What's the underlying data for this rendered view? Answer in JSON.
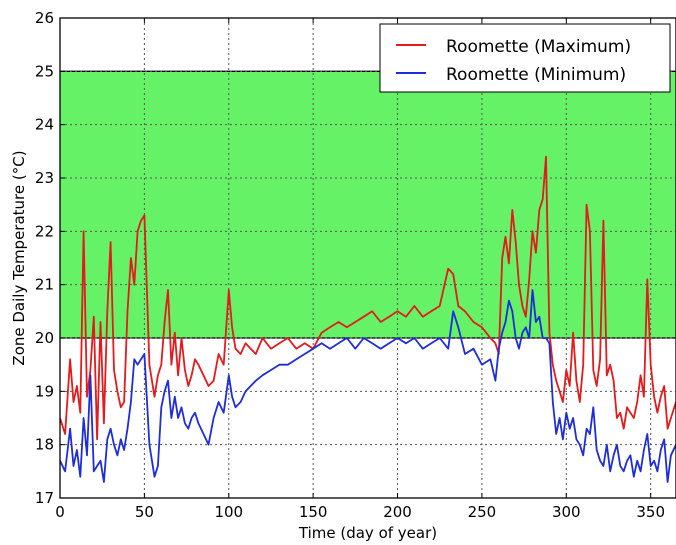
{
  "chart_data": {
    "type": "line",
    "title": "",
    "xlabel": "Time (day of year)",
    "ylabel": "Zone Daily Temperature (°C)",
    "xlim": [
      0,
      365
    ],
    "ylim": [
      17,
      26
    ],
    "xticks": [
      "0",
      "50",
      "100",
      "150",
      "200",
      "250",
      "300",
      "350"
    ],
    "yticks": [
      "17",
      "18",
      "19",
      "20",
      "21",
      "22",
      "23",
      "24",
      "25",
      "26"
    ],
    "grid": true,
    "legend_position": "top-right",
    "band": {
      "y0": 20,
      "y1": 25,
      "color": "#66f266"
    },
    "series": [
      {
        "name": "Roomette (Maximum)",
        "color": "#e41a1c",
        "x": [
          0,
          3,
          6,
          8,
          10,
          12,
          14,
          16,
          18,
          20,
          22,
          24,
          26,
          28,
          30,
          32,
          34,
          36,
          38,
          40,
          42,
          44,
          46,
          48,
          50,
          53,
          56,
          58,
          60,
          62,
          64,
          66,
          68,
          70,
          72,
          74,
          76,
          78,
          80,
          82,
          85,
          88,
          91,
          94,
          97,
          100,
          102,
          104,
          107,
          110,
          113,
          116,
          120,
          125,
          130,
          135,
          140,
          145,
          150,
          155,
          160,
          165,
          170,
          175,
          180,
          185,
          190,
          195,
          200,
          205,
          210,
          215,
          220,
          225,
          230,
          233,
          236,
          240,
          245,
          250,
          255,
          258,
          260,
          262,
          264,
          266,
          268,
          270,
          272,
          274,
          276,
          278,
          280,
          282,
          284,
          286,
          288,
          290,
          292,
          294,
          296,
          298,
          300,
          302,
          304,
          306,
          308,
          310,
          312,
          314,
          316,
          318,
          320,
          322,
          324,
          326,
          328,
          330,
          332,
          334,
          336,
          338,
          340,
          342,
          344,
          346,
          348,
          350,
          352,
          354,
          356,
          358,
          360,
          362,
          365
        ],
        "y": [
          18.5,
          18.2,
          19.6,
          18.8,
          19.1,
          18.6,
          22.0,
          18.9,
          19.4,
          20.4,
          18.1,
          20.3,
          18.4,
          20.5,
          21.8,
          19.4,
          19.0,
          18.7,
          18.8,
          20.5,
          21.5,
          21.0,
          22.0,
          22.2,
          22.3,
          19.5,
          18.9,
          19.3,
          19.5,
          20.3,
          20.9,
          19.5,
          20.1,
          19.3,
          20.0,
          19.4,
          19.1,
          19.3,
          19.6,
          19.5,
          19.3,
          19.1,
          19.2,
          19.7,
          19.5,
          20.9,
          20.2,
          19.8,
          19.7,
          19.9,
          19.8,
          19.7,
          20.0,
          19.8,
          19.9,
          20.0,
          19.8,
          19.9,
          19.8,
          20.1,
          20.2,
          20.3,
          20.2,
          20.3,
          20.4,
          20.5,
          20.3,
          20.4,
          20.5,
          20.4,
          20.6,
          20.4,
          20.5,
          20.6,
          21.3,
          21.2,
          20.6,
          20.5,
          20.3,
          20.2,
          20.0,
          19.9,
          19.7,
          21.5,
          21.9,
          21.4,
          22.4,
          21.8,
          21.0,
          20.6,
          20.4,
          21.1,
          22.0,
          21.6,
          22.4,
          22.6,
          23.4,
          20.1,
          19.5,
          19.2,
          19.0,
          18.8,
          19.4,
          19.1,
          20.1,
          19.2,
          18.8,
          19.5,
          22.5,
          22.0,
          19.4,
          19.1,
          19.6,
          22.2,
          19.3,
          19.5,
          19.2,
          18.5,
          18.6,
          18.3,
          18.7,
          18.6,
          18.5,
          18.8,
          19.3,
          18.9,
          21.1,
          19.5,
          18.9,
          18.6,
          18.9,
          19.1,
          18.3,
          18.5,
          18.8
        ]
      },
      {
        "name": "Roomette (Minimum)",
        "color": "#1f2dd8",
        "x": [
          0,
          3,
          6,
          8,
          10,
          12,
          14,
          16,
          18,
          20,
          22,
          24,
          26,
          28,
          30,
          32,
          34,
          36,
          38,
          40,
          42,
          44,
          46,
          48,
          50,
          53,
          56,
          58,
          60,
          62,
          64,
          66,
          68,
          70,
          72,
          74,
          76,
          78,
          80,
          82,
          85,
          88,
          91,
          94,
          97,
          100,
          102,
          104,
          107,
          110,
          113,
          116,
          120,
          125,
          130,
          135,
          140,
          145,
          150,
          155,
          160,
          165,
          170,
          175,
          180,
          185,
          190,
          195,
          200,
          205,
          210,
          215,
          220,
          225,
          230,
          233,
          236,
          240,
          245,
          250,
          255,
          258,
          260,
          262,
          264,
          266,
          268,
          270,
          272,
          274,
          276,
          278,
          280,
          282,
          284,
          286,
          288,
          290,
          292,
          294,
          296,
          298,
          300,
          302,
          304,
          306,
          308,
          310,
          312,
          314,
          316,
          318,
          320,
          322,
          324,
          326,
          328,
          330,
          332,
          334,
          336,
          338,
          340,
          342,
          344,
          346,
          348,
          350,
          352,
          354,
          356,
          358,
          360,
          362,
          365
        ],
        "y": [
          17.7,
          17.5,
          18.3,
          17.6,
          17.9,
          17.4,
          18.5,
          17.8,
          19.3,
          17.5,
          17.6,
          17.7,
          17.3,
          18.1,
          18.3,
          18.0,
          17.8,
          18.1,
          17.9,
          18.3,
          18.8,
          19.6,
          19.5,
          19.6,
          19.7,
          18.0,
          17.4,
          17.6,
          18.7,
          19.0,
          19.2,
          18.5,
          18.9,
          18.5,
          18.7,
          18.4,
          18.3,
          18.5,
          18.6,
          18.4,
          18.2,
          18.0,
          18.5,
          18.8,
          18.6,
          19.3,
          18.9,
          18.7,
          18.8,
          19.0,
          19.1,
          19.2,
          19.3,
          19.4,
          19.5,
          19.5,
          19.6,
          19.7,
          19.8,
          19.9,
          19.8,
          19.9,
          20.0,
          19.8,
          20.0,
          19.9,
          19.8,
          19.9,
          20.0,
          19.9,
          20.0,
          19.8,
          19.9,
          20.0,
          19.8,
          20.5,
          20.2,
          19.7,
          19.8,
          19.5,
          19.6,
          19.2,
          19.8,
          20.1,
          20.3,
          20.7,
          20.5,
          20.0,
          19.8,
          20.1,
          20.2,
          20.0,
          20.9,
          20.3,
          20.4,
          20.0,
          20.0,
          19.9,
          18.8,
          18.2,
          18.5,
          18.1,
          18.6,
          18.3,
          18.5,
          18.1,
          18.0,
          17.8,
          18.3,
          18.2,
          18.7,
          17.9,
          17.7,
          17.6,
          18.0,
          17.5,
          17.8,
          18.0,
          17.6,
          17.5,
          17.7,
          17.8,
          17.4,
          17.7,
          17.5,
          17.9,
          18.2,
          17.6,
          17.7,
          17.5,
          17.9,
          18.1,
          17.3,
          17.8,
          18.0
        ]
      }
    ]
  }
}
